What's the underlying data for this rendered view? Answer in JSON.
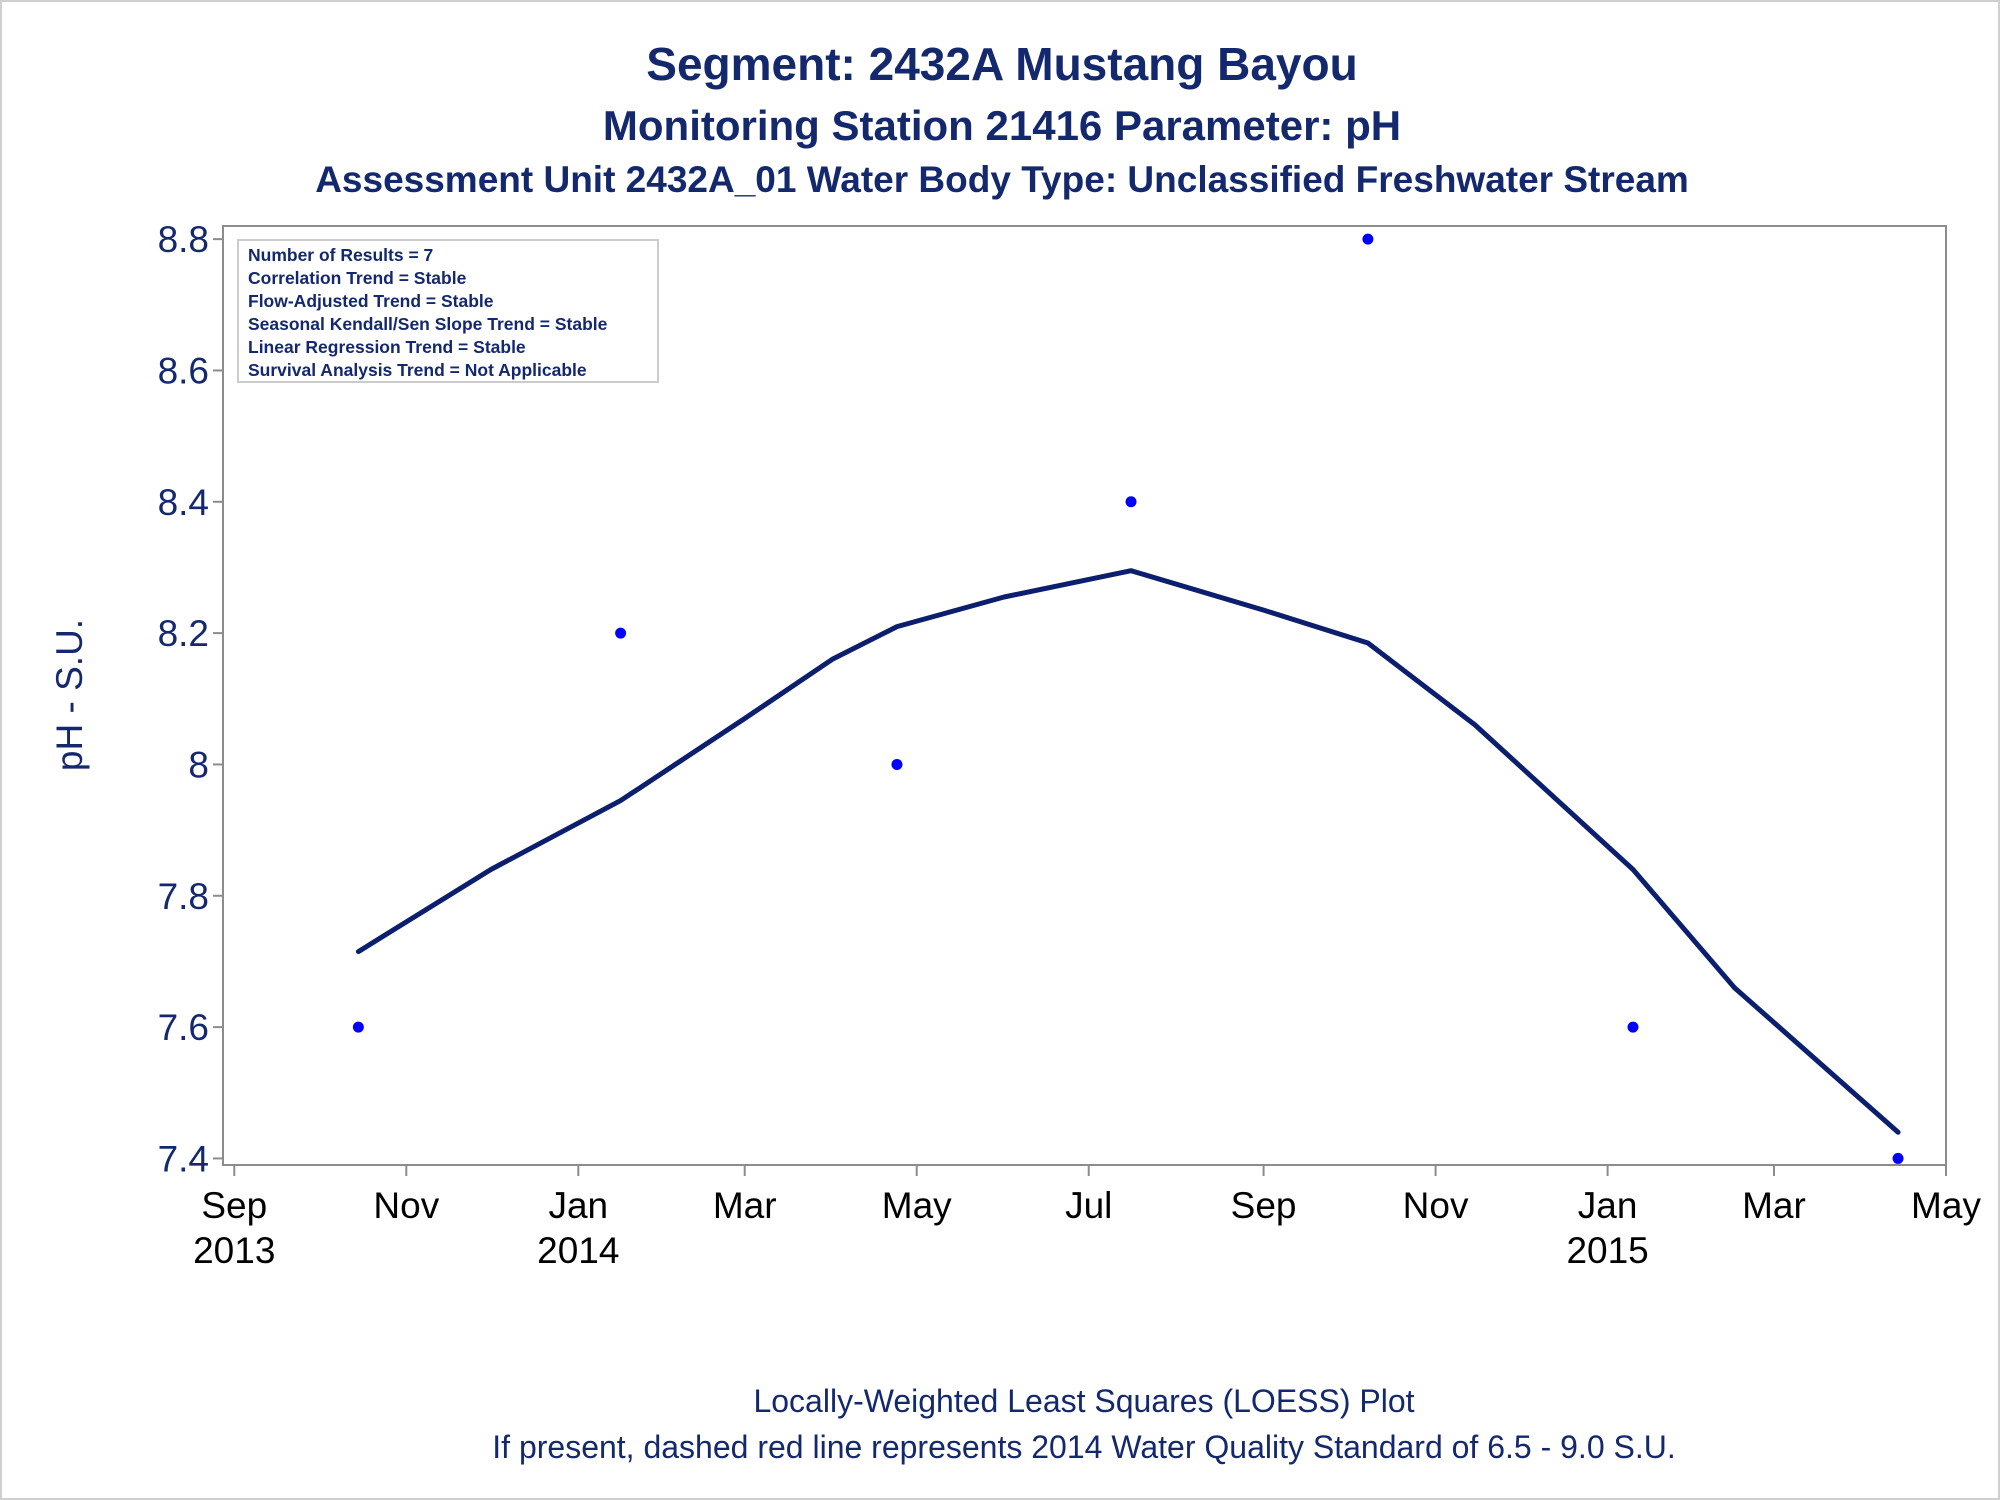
{
  "chart_data": {
    "type": "scatter",
    "titles": [
      "Segment: 2432A  Mustang Bayou",
      "Monitoring Station 21416 Parameter: pH",
      "Assessment Unit 2432A_01   Water Body Type: Unclassified Freshwater Stream"
    ],
    "ylabel": "pH - S.U.",
    "ylim": [
      7.39,
      8.82
    ],
    "y_ticks": [
      "7.4",
      "7.6",
      "7.8",
      "8",
      "8.2",
      "8.4",
      "8.6",
      "8.8"
    ],
    "x_range": [
      "2013-08-28",
      "2015-05-01"
    ],
    "x_ticks": [
      {
        "date": "2013-09-01",
        "label": "Sep",
        "year": "2013"
      },
      {
        "date": "2013-11-01",
        "label": "Nov",
        "year": ""
      },
      {
        "date": "2014-01-01",
        "label": "Jan",
        "year": "2014"
      },
      {
        "date": "2014-03-01",
        "label": "Mar",
        "year": ""
      },
      {
        "date": "2014-05-01",
        "label": "May",
        "year": ""
      },
      {
        "date": "2014-07-01",
        "label": "Jul",
        "year": ""
      },
      {
        "date": "2014-09-01",
        "label": "Sep",
        "year": ""
      },
      {
        "date": "2014-11-01",
        "label": "Nov",
        "year": ""
      },
      {
        "date": "2015-01-01",
        "label": "Jan",
        "year": "2015"
      },
      {
        "date": "2015-03-01",
        "label": "Mar",
        "year": ""
      },
      {
        "date": "2015-05-01",
        "label": "May",
        "year": ""
      }
    ],
    "points": [
      {
        "date": "2013-10-15",
        "value": 7.6
      },
      {
        "date": "2014-01-16",
        "value": 8.2
      },
      {
        "date": "2014-04-24",
        "value": 8.0
      },
      {
        "date": "2014-07-16",
        "value": 8.4
      },
      {
        "date": "2014-10-08",
        "value": 8.8
      },
      {
        "date": "2015-01-10",
        "value": 7.6
      },
      {
        "date": "2015-04-14",
        "value": 7.4
      }
    ],
    "loess": [
      {
        "date": "2013-10-15",
        "value": 7.715
      },
      {
        "date": "2013-12-01",
        "value": 7.84
      },
      {
        "date": "2014-01-16",
        "value": 7.945
      },
      {
        "date": "2014-03-01",
        "value": 8.07
      },
      {
        "date": "2014-04-01",
        "value": 8.16
      },
      {
        "date": "2014-04-24",
        "value": 8.21
      },
      {
        "date": "2014-06-01",
        "value": 8.255
      },
      {
        "date": "2014-07-16",
        "value": 8.295
      },
      {
        "date": "2014-09-01",
        "value": 8.235
      },
      {
        "date": "2014-10-08",
        "value": 8.185
      },
      {
        "date": "2014-11-15",
        "value": 8.06
      },
      {
        "date": "2015-01-10",
        "value": 7.84
      },
      {
        "date": "2015-02-15",
        "value": 7.66
      },
      {
        "date": "2015-04-14",
        "value": 7.44
      }
    ],
    "grid": false,
    "colors": {
      "points": "#0000ff",
      "line": "#0c1f6e",
      "text": "#14286e",
      "axis": "#8c8c8c"
    }
  },
  "inset_stats": [
    "Number of Results = 7",
    "Correlation Trend = Stable",
    "Flow-Adjusted Trend = Stable",
    "Seasonal Kendall/Sen Slope Trend = Stable",
    "Linear Regression Trend = Stable",
    "Survival Analysis Trend = Not Applicable"
  ],
  "footnotes": [
    "Locally-Weighted Least Squares (LOESS) Plot",
    "If present, dashed red line represents 2014 Water Quality Standard of 6.5 - 9.0 S.U."
  ]
}
